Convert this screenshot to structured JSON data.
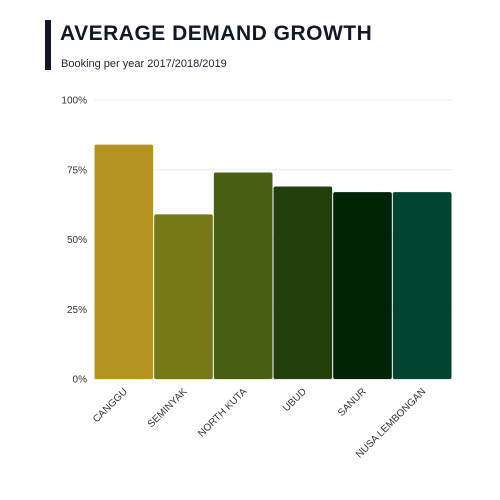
{
  "header": {
    "title": "AVERAGE DEMAND GROWTH",
    "subtitle": "Booking per year 2017/2018/2019"
  },
  "chart_data": {
    "type": "bar",
    "title": "AVERAGE DEMAND GROWTH",
    "subtitle": "Booking per year 2017/2018/2019",
    "categories": [
      "CANGGU",
      "SEMINYAK",
      "NORTH KUTA",
      "UBUD",
      "SANUR",
      "NUSA LEMBONGAN"
    ],
    "values": [
      84,
      59,
      74,
      69,
      67,
      67
    ],
    "colors": [
      "#b59322",
      "#767a16",
      "#485e10",
      "#223e0d",
      "#022305",
      "#004430"
    ],
    "yticks": [
      "0%",
      "25%",
      "50%",
      "75%",
      "100%"
    ],
    "ylim": [
      0,
      100
    ],
    "grid": true,
    "legend": "none",
    "xlabel": "",
    "ylabel": ""
  }
}
